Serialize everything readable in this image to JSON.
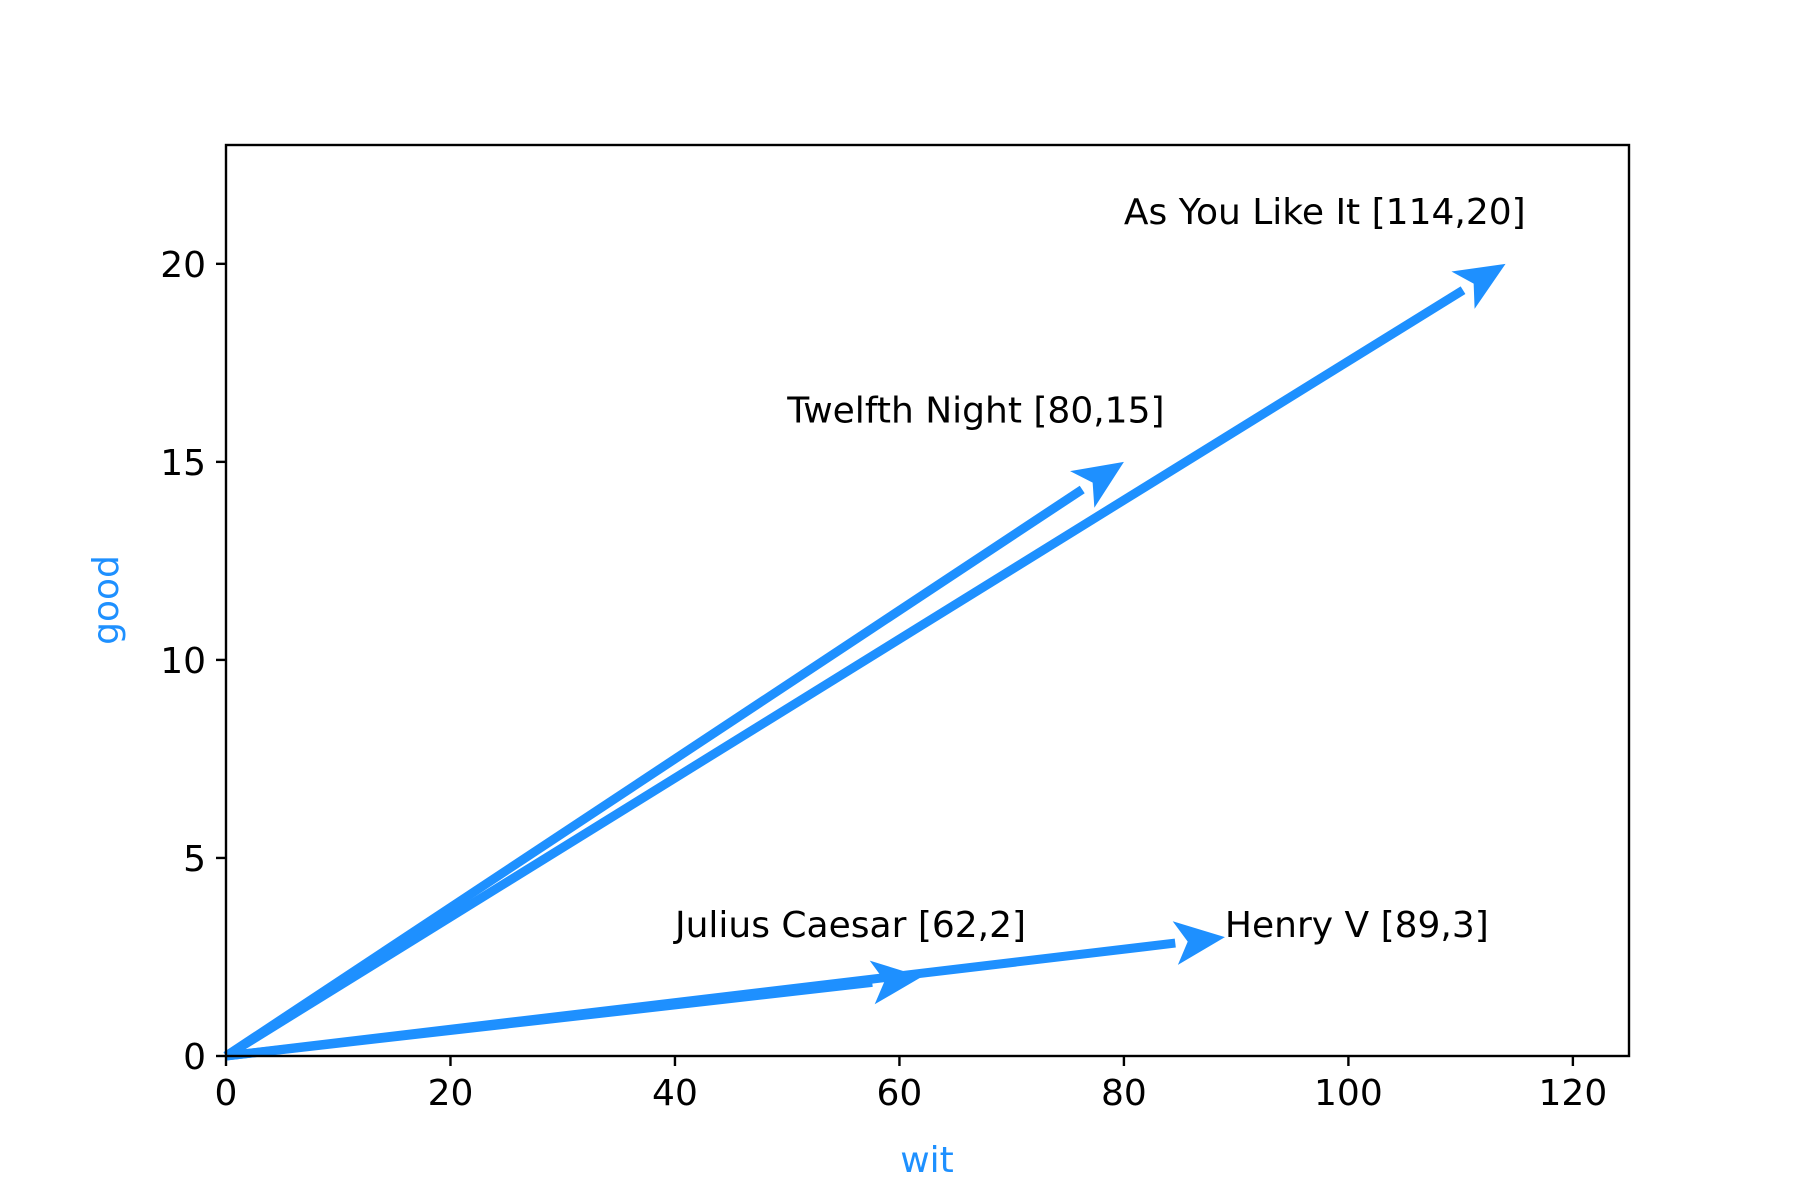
{
  "chart_data": {
    "type": "vector",
    "xlabel": "wit",
    "ylabel": "good",
    "xlim": [
      0,
      125
    ],
    "ylim": [
      0,
      23
    ],
    "xticks": [
      0,
      20,
      40,
      60,
      80,
      100,
      120
    ],
    "yticks": [
      0,
      5,
      10,
      15,
      20
    ],
    "grid": false,
    "colors": {
      "vector": "#1e90ff",
      "axis_label": "#1e90ff"
    },
    "vectors": [
      {
        "label": "As You Like It [114,20]",
        "x": 114,
        "y": 20,
        "label_x": 80,
        "label_y": 21
      },
      {
        "label": "Twelfth Night [80,15]",
        "x": 80,
        "y": 15,
        "label_x": 50,
        "label_y": 16
      },
      {
        "label": "Julius Caesar [62,2]",
        "x": 62,
        "y": 2,
        "label_x": 40,
        "label_y": 3
      },
      {
        "label": "Henry V [89,3]",
        "x": 89,
        "y": 3,
        "label_x": 89,
        "label_y": 3
      }
    ]
  }
}
